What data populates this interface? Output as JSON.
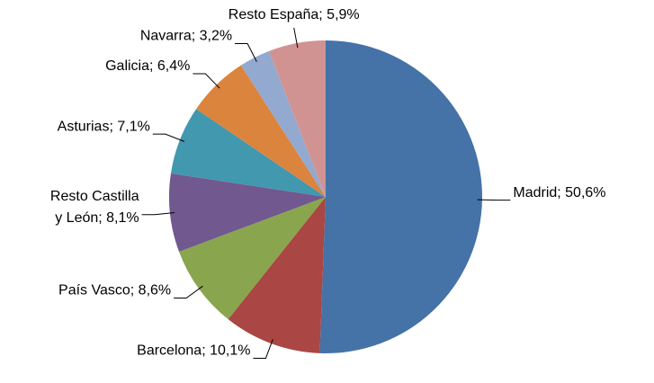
{
  "chart_data": {
    "type": "pie",
    "categories": [
      "Madrid",
      "Barcelona",
      "País Vasco",
      "Resto Castilla y León",
      "Asturias",
      "Galicia",
      "Navarra",
      "Resto España"
    ],
    "values": [
      50.6,
      10.1,
      8.6,
      8.1,
      7.1,
      6.4,
      3.2,
      5.9
    ],
    "value_labels": [
      "Madrid; 50,6%",
      "Barcelona; 10,1%",
      "País Vasco; 8,6%",
      "Resto Castilla y León; 8,1%",
      "Asturias; 7,1%",
      "Galicia; 6,4%",
      "Navarra; 3,2%",
      "Resto España; 5,9%"
    ],
    "colors": [
      "#4572a7",
      "#aa4643",
      "#89a54e",
      "#71588f",
      "#4198af",
      "#db843d",
      "#93a9cf",
      "#d19392"
    ]
  }
}
